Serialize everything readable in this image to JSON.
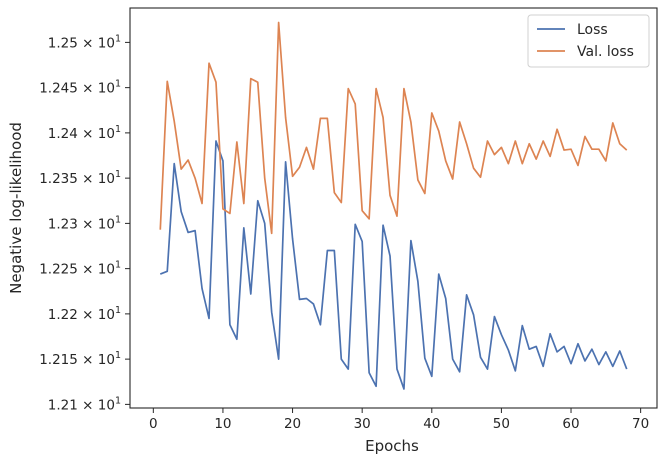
{
  "chart_data": {
    "type": "line",
    "xlabel": "Epochs",
    "ylabel": "Negative log-likelihood",
    "xlim": [
      -3.35,
      72.35
    ],
    "ylim": [
      12.096,
      12.538
    ],
    "xticks": [
      0,
      10,
      20,
      30,
      40,
      50,
      60,
      70
    ],
    "yticks": [
      {
        "value": 12.1,
        "mantissa": "1.21"
      },
      {
        "value": 12.15,
        "mantissa": "1.215"
      },
      {
        "value": 12.2,
        "mantissa": "1.22"
      },
      {
        "value": 12.25,
        "mantissa": "1.225"
      },
      {
        "value": 12.3,
        "mantissa": "1.23"
      },
      {
        "value": 12.35,
        "mantissa": "1.235"
      },
      {
        "value": 12.4,
        "mantissa": "1.24"
      },
      {
        "value": 12.45,
        "mantissa": "1.245"
      },
      {
        "value": 12.5,
        "mantissa": "1.25"
      }
    ],
    "ytick_base": "10",
    "ytick_exponent": "1",
    "grid": false,
    "legend_position": "top-right",
    "x": [
      1,
      2,
      3,
      4,
      5,
      6,
      7,
      8,
      9,
      10,
      11,
      12,
      13,
      14,
      15,
      16,
      17,
      18,
      19,
      20,
      21,
      22,
      23,
      24,
      25,
      26,
      27,
      28,
      29,
      30,
      31,
      32,
      33,
      34,
      35,
      36,
      37,
      38,
      39,
      40,
      41,
      42,
      43,
      44,
      45,
      46,
      47,
      48,
      49,
      50,
      51,
      52,
      53,
      54,
      55,
      56,
      57,
      58,
      59,
      60,
      61,
      62,
      63,
      64,
      65,
      66,
      67,
      68
    ],
    "series": [
      {
        "name": "Loss",
        "color": "#4c72b0",
        "values": [
          12.244,
          12.247,
          12.366,
          12.313,
          12.29,
          12.292,
          12.228,
          12.195,
          12.391,
          12.369,
          12.188,
          12.172,
          12.295,
          12.222,
          12.325,
          12.3,
          12.202,
          12.15,
          12.368,
          12.283,
          12.216,
          12.217,
          12.211,
          12.188,
          12.27,
          12.27,
          12.15,
          12.139,
          12.299,
          12.28,
          12.135,
          12.12,
          12.298,
          12.264,
          12.139,
          12.117,
          12.281,
          12.236,
          12.151,
          12.131,
          12.244,
          12.217,
          12.15,
          12.136,
          12.221,
          12.199,
          12.152,
          12.139,
          12.197,
          12.177,
          12.16,
          12.137,
          12.187,
          12.161,
          12.164,
          12.142,
          12.178,
          12.158,
          12.164,
          12.145,
          12.167,
          12.148,
          12.161,
          12.144,
          12.158,
          12.142,
          12.159,
          12.139
        ]
      },
      {
        "name": "Val. loss",
        "color": "#dd8452",
        "values": [
          12.293,
          12.457,
          12.413,
          12.36,
          12.37,
          12.35,
          12.322,
          12.477,
          12.456,
          12.316,
          12.311,
          12.39,
          12.322,
          12.46,
          12.456,
          12.35,
          12.289,
          12.522,
          12.417,
          12.352,
          12.362,
          12.384,
          12.36,
          12.416,
          12.416,
          12.334,
          12.323,
          12.449,
          12.432,
          12.314,
          12.305,
          12.449,
          12.417,
          12.331,
          12.308,
          12.449,
          12.412,
          12.348,
          12.333,
          12.422,
          12.402,
          12.369,
          12.349,
          12.412,
          12.388,
          12.361,
          12.351,
          12.391,
          12.376,
          12.384,
          12.366,
          12.391,
          12.366,
          12.388,
          12.371,
          12.391,
          12.374,
          12.404,
          12.381,
          12.382,
          12.364,
          12.396,
          12.382,
          12.382,
          12.369,
          12.411,
          12.388,
          12.381
        ]
      }
    ]
  }
}
